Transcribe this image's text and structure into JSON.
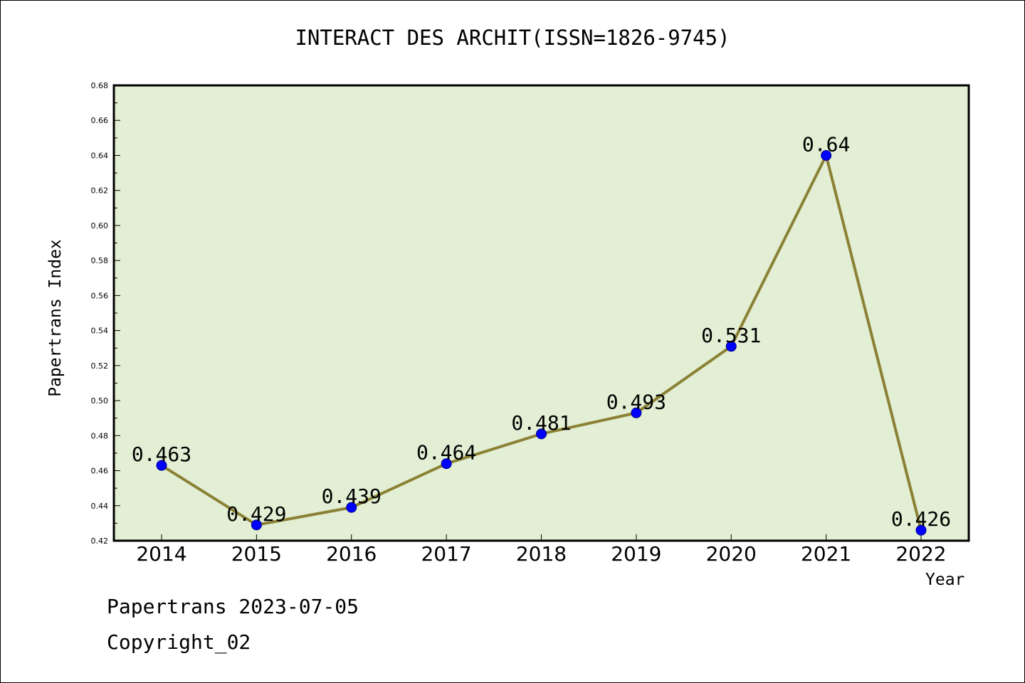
{
  "chart_data": {
    "type": "line",
    "title": "INTERACT DES ARCHIT(ISSN=1826-9745)",
    "xlabel": "Year",
    "ylabel": "Papertrans Index",
    "categories": [
      "2014",
      "2015",
      "2016",
      "2017",
      "2018",
      "2019",
      "2020",
      "2021",
      "2022"
    ],
    "values": [
      0.463,
      0.429,
      0.439,
      0.464,
      0.481,
      0.493,
      0.531,
      0.64,
      0.426
    ],
    "data_labels": [
      "0.463",
      "0.429",
      "0.439",
      "0.464",
      "0.481",
      "0.493",
      "0.531",
      "0.64",
      "0.426"
    ],
    "ylim": [
      0.42,
      0.68
    ],
    "yticks": [
      "0.42",
      "0.44",
      "0.46",
      "0.48",
      "0.50",
      "0.52",
      "0.54",
      "0.56",
      "0.58",
      "0.60",
      "0.62",
      "0.64",
      "0.66",
      "0.68"
    ],
    "grid": false,
    "legend": "none",
    "colors": {
      "plot_background": "#e2efd4",
      "line": "#8b8135",
      "marker": "#0000ff"
    }
  },
  "footer": {
    "line1": "Papertrans 2023-07-05",
    "line2": "Copyright_02"
  }
}
